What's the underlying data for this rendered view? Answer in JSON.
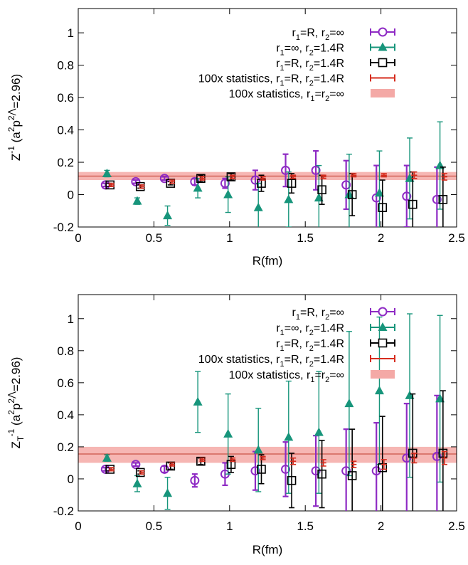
{
  "chart_data": [
    {
      "type": "scatter",
      "xlabel": "R(fm)",
      "ylabel": {
        "base": "Z",
        "sub": "",
        "sup": "-1",
        "paren": "(a",
        "psup": "2",
        "mid": "p",
        "psup2": "2⋀",
        "tail": "=2.96)"
      },
      "xlim": [
        0,
        2.5
      ],
      "ylim": [
        -0.2,
        1.15
      ],
      "xticks": [
        "0",
        "0.5",
        "1",
        "1.5",
        "2",
        "2.5"
      ],
      "yticks": [
        "-0.2",
        "0",
        "0.2",
        "0.4",
        "0.6",
        "0.8",
        "1"
      ],
      "band": {
        "lo": 0.09,
        "hi": 0.14,
        "line": 0.115,
        "color": "#f4a9a6"
      },
      "legend_placement": "top-right",
      "series": [
        {
          "legend": {
            "parts": [
              [
                "r",
                "1",
                "=R, "
              ],
              [
                "r",
                "2",
                "=∞"
              ]
            ]
          },
          "marker": "circle",
          "color": "#8e2ac4",
          "x": [
            0.18,
            0.38,
            0.57,
            0.77,
            0.97,
            1.17,
            1.37,
            1.57,
            1.77,
            1.97,
            2.17,
            2.37
          ],
          "y": [
            0.06,
            0.08,
            0.1,
            0.08,
            0.07,
            0.09,
            0.15,
            0.15,
            0.06,
            -0.02,
            -0.01,
            -0.03
          ],
          "err": [
            0.01,
            0.01,
            0.01,
            0.02,
            0.03,
            0.06,
            0.1,
            0.12,
            0.15,
            0.2,
            0.19,
            0.2
          ]
        },
        {
          "legend": {
            "parts": [
              [
                "r",
                "1",
                "=∞, "
              ],
              [
                "r",
                "2",
                "=1.4R"
              ]
            ]
          },
          "marker": "triangle",
          "color": "#17957b",
          "x": [
            0.19,
            0.39,
            0.59,
            0.79,
            0.99,
            1.19,
            1.39,
            1.59,
            1.79,
            1.99,
            2.19,
            2.39
          ],
          "y": [
            0.13,
            -0.04,
            -0.13,
            0.04,
            0.0,
            -0.08,
            -0.03,
            -0.02,
            0.0,
            0.01,
            0.1,
            0.18
          ],
          "err": [
            0.02,
            0.02,
            0.06,
            0.06,
            0.11,
            0.15,
            0.17,
            0.2,
            0.25,
            0.26,
            0.25,
            0.27
          ]
        },
        {
          "legend": {
            "parts": [
              [
                "r",
                "1",
                "=R, "
              ],
              [
                "r",
                "2",
                "=1.4R"
              ]
            ]
          },
          "marker": "square",
          "color": "#000000",
          "x": [
            0.21,
            0.41,
            0.61,
            0.81,
            1.01,
            1.21,
            1.41,
            1.61,
            1.81,
            2.01,
            2.21,
            2.41
          ],
          "y": [
            0.06,
            0.05,
            0.07,
            0.1,
            0.11,
            0.07,
            0.07,
            0.03,
            0.0,
            -0.08,
            -0.06,
            -0.03
          ],
          "err": [
            0.01,
            0.01,
            0.01,
            0.02,
            0.02,
            0.05,
            0.06,
            0.09,
            0.13,
            0.17,
            0.2,
            0.2
          ]
        },
        {
          "legend": {
            "parts": [
              [
                "100x statistics, r",
                "1",
                "=R, "
              ],
              [
                "r",
                "2",
                "=1.4R"
              ]
            ]
          },
          "marker": "plus",
          "color": "#d62c1e",
          "x": [
            0.22,
            0.42,
            0.62,
            0.82,
            1.02,
            1.22,
            1.42,
            1.62,
            1.82,
            2.02,
            2.22,
            2.42
          ],
          "y": [
            0.06,
            0.05,
            0.08,
            0.1,
            0.11,
            0.1,
            0.11,
            0.11,
            0.12,
            0.12,
            0.12,
            0.11
          ],
          "err": [
            0.01,
            0.01,
            0.01,
            0.01,
            0.01,
            0.01,
            0.01,
            0.01,
            0.01,
            0.01,
            0.02,
            0.02
          ]
        },
        {
          "legend": {
            "parts": [
              [
                "100x statistics, r",
                "1",
                "=r"
              ],
              [
                "",
                "2",
                "=∞"
              ]
            ]
          },
          "marker": "band",
          "color": "#f4a9a6"
        }
      ]
    },
    {
      "type": "scatter",
      "xlabel": "R(fm)",
      "ylabel": {
        "base": "Z",
        "sub": "T",
        "sup": "-1",
        "paren": "(a",
        "psup": "2",
        "mid": "p",
        "psup2": "2⋀",
        "tail": "=2.96)"
      },
      "xlim": [
        0,
        2.5
      ],
      "ylim": [
        -0.2,
        1.15
      ],
      "xticks": [
        "0",
        "0.5",
        "1",
        "1.5",
        "2",
        "2.5"
      ],
      "yticks": [
        "-0.2",
        "0",
        "0.2",
        "0.4",
        "0.6",
        "0.8",
        "1"
      ],
      "band": {
        "lo": 0.1,
        "hi": 0.2,
        "line": 0.155,
        "color": "#f4a9a6"
      },
      "legend_placement": "top-right",
      "series": [
        {
          "legend": {
            "parts": [
              [
                "r",
                "1",
                "=R, "
              ],
              [
                "r",
                "2",
                "=∞"
              ]
            ]
          },
          "marker": "circle",
          "color": "#8e2ac4",
          "x": [
            0.18,
            0.38,
            0.57,
            0.77,
            0.97,
            1.17,
            1.37,
            1.57,
            1.77,
            1.97,
            2.17,
            2.37
          ],
          "y": [
            0.06,
            0.09,
            0.06,
            -0.01,
            0.03,
            0.05,
            0.06,
            0.05,
            0.05,
            0.05,
            0.13,
            0.14
          ],
          "err": [
            0.01,
            0.01,
            0.02,
            0.04,
            0.07,
            0.12,
            0.17,
            0.22,
            0.26,
            0.3,
            0.34,
            0.38
          ]
        },
        {
          "legend": {
            "parts": [
              [
                "r",
                "1",
                "=∞, "
              ],
              [
                "r",
                "2",
                "=1.4R"
              ]
            ]
          },
          "marker": "triangle",
          "color": "#17957b",
          "x": [
            0.19,
            0.39,
            0.59,
            0.79,
            0.99,
            1.19,
            1.39,
            1.59,
            1.79,
            1.99,
            2.19,
            2.39
          ],
          "y": [
            0.13,
            -0.03,
            -0.09,
            0.48,
            0.28,
            0.18,
            0.26,
            0.29,
            0.47,
            0.55,
            0.52,
            0.5
          ],
          "err": [
            0.02,
            0.05,
            0.1,
            0.19,
            0.25,
            0.26,
            0.35,
            0.38,
            0.45,
            0.46,
            0.51,
            0.52
          ]
        },
        {
          "legend": {
            "parts": [
              [
                "r",
                "1",
                "=R, "
              ],
              [
                "r",
                "2",
                "=1.4R"
              ]
            ]
          },
          "marker": "square",
          "color": "#000000",
          "x": [
            0.21,
            0.41,
            0.61,
            0.81,
            1.01,
            1.21,
            1.41,
            1.61,
            1.81,
            2.01,
            2.21,
            2.41
          ],
          "y": [
            0.06,
            0.04,
            0.08,
            0.11,
            0.09,
            0.06,
            -0.01,
            0.03,
            0.02,
            0.07,
            0.16,
            0.16
          ],
          "err": [
            0.01,
            0.01,
            0.02,
            0.02,
            0.05,
            0.09,
            0.17,
            0.21,
            0.29,
            0.32,
            0.37,
            0.39
          ]
        },
        {
          "legend": {
            "parts": [
              [
                "100x statistics, r",
                "1",
                "=R, "
              ],
              [
                "r",
                "2",
                "=1.4R"
              ]
            ]
          },
          "marker": "plus",
          "color": "#d62c1e",
          "x": [
            0.22,
            0.42,
            0.62,
            0.82,
            1.02,
            1.22,
            1.42,
            1.62,
            1.82,
            2.02,
            2.22,
            2.42
          ],
          "y": [
            0.06,
            0.04,
            0.09,
            0.12,
            0.12,
            0.13,
            0.11,
            0.1,
            0.09,
            0.09,
            0.13,
            0.13
          ],
          "err": [
            0.01,
            0.01,
            0.01,
            0.01,
            0.01,
            0.01,
            0.02,
            0.02,
            0.02,
            0.03,
            0.03,
            0.04
          ]
        },
        {
          "legend": {
            "parts": [
              [
                "100x statistics, r",
                "1",
                "=r"
              ],
              [
                "",
                "2",
                "=∞"
              ]
            ]
          },
          "marker": "band",
          "color": "#f4a9a6"
        }
      ]
    }
  ]
}
